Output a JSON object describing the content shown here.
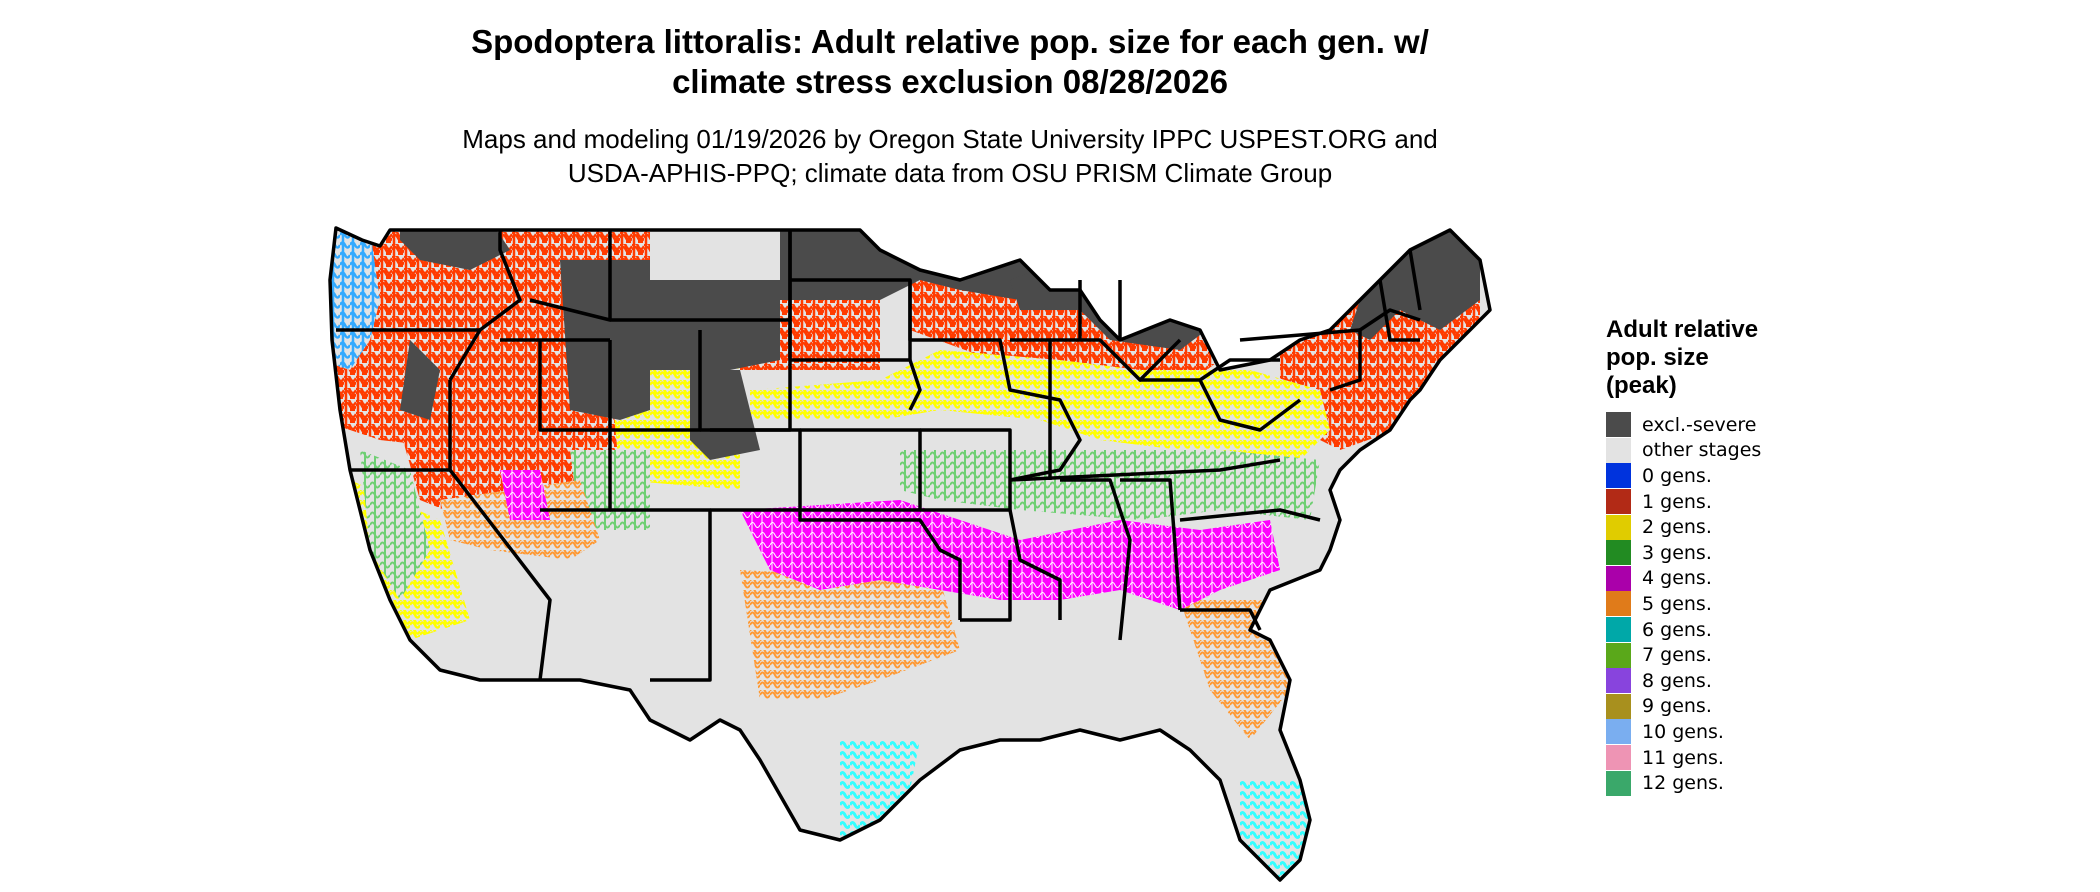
{
  "header": {
    "title_line1": "Spodoptera littoralis: Adult relative pop. size for each gen. w/",
    "title_line2": "climate stress exclusion 08/28/2026",
    "subtitle_line1": "Maps and modeling 01/19/2026 by Oregon State University IPPC USPEST.ORG and",
    "subtitle_line2": "USDA-APHIS-PPQ; climate data from OSU PRISM Climate Group"
  },
  "legend": {
    "title_lines": [
      "Adult relative",
      "pop. size",
      "(peak)"
    ],
    "items": [
      {
        "label": "excl.-severe",
        "color": "#4b4b4b"
      },
      {
        "label": "other stages",
        "color": "#e3e3e3"
      },
      {
        "label": "0 gens.",
        "color": "#0033dd"
      },
      {
        "label": "1 gens.",
        "color": "#b22a16"
      },
      {
        "label": "2 gens.",
        "color": "#e0cc00"
      },
      {
        "label": "3 gens.",
        "color": "#228b22"
      },
      {
        "label": "4 gens.",
        "color": "#aa00aa"
      },
      {
        "label": "5 gens.",
        "color": "#e07b1a"
      },
      {
        "label": "6 gens.",
        "color": "#00a8a8"
      },
      {
        "label": "7 gens.",
        "color": "#5aa81a"
      },
      {
        "label": "8 gens.",
        "color": "#8844dd"
      },
      {
        "label": "9 gens.",
        "color": "#a8901e"
      },
      {
        "label": "10 gens.",
        "color": "#7aaef0"
      },
      {
        "label": "11 gens.",
        "color": "#ee94b4"
      },
      {
        "label": "12 gens.",
        "color": "#3aa86a"
      }
    ]
  },
  "map_colors": {
    "excluded": "#4b4b4b",
    "other_stages": "#e3e3e3",
    "gen1_pattern": "#ff3b00",
    "gen2_pattern": "#ffff00",
    "gen3_pattern": "#6fcf73",
    "gen4_pattern": "#ff00ff",
    "gen5_pattern": "#ff9933",
    "gen6_pattern": "#33ffff",
    "gen10_pattern": "#33aaff",
    "state_border": "#000000"
  }
}
